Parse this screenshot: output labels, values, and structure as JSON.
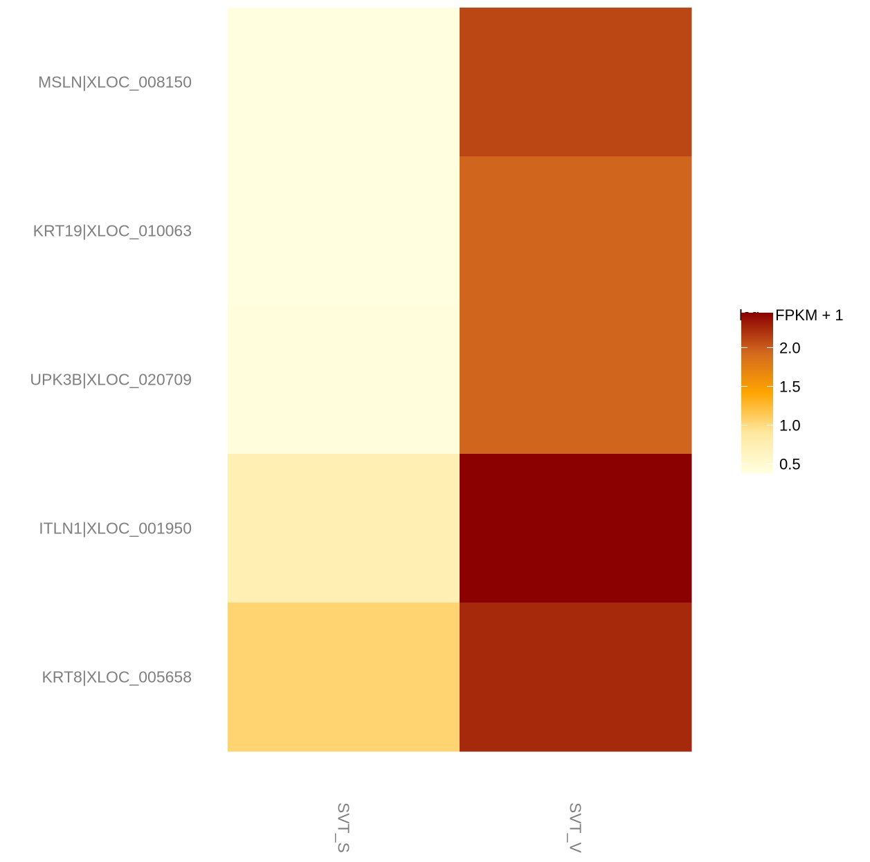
{
  "chart_data": {
    "type": "heatmap",
    "rows": [
      "MSLN|XLOC_008150",
      "KRT19|XLOC_010063",
      "UPK3B|XLOC_020709",
      "ITLN1|XLOC_001950",
      "KRT8|XLOC_005658"
    ],
    "columns": [
      "SVT_S",
      "SVT_V"
    ],
    "values": [
      [
        0.4,
        2.1
      ],
      [
        0.38,
        1.95
      ],
      [
        0.42,
        1.95
      ],
      [
        0.75,
        2.45
      ],
      [
        1.05,
        2.25
      ]
    ],
    "legend": {
      "title_main": "log",
      "title_sub": "10",
      "title_rest": " FPKM + 1",
      "ticks": [
        0.5,
        1.0,
        1.5,
        2.0
      ],
      "tick_labels": [
        "0.5",
        "1.0",
        "1.5",
        "2.0"
      ],
      "range": [
        0.38,
        2.45
      ],
      "placement": "right"
    },
    "color_scale": [
      "#FFFFE0",
      "#FFE8A0",
      "#FFA500",
      "#D2691E",
      "#8B0000"
    ],
    "grid": false
  }
}
